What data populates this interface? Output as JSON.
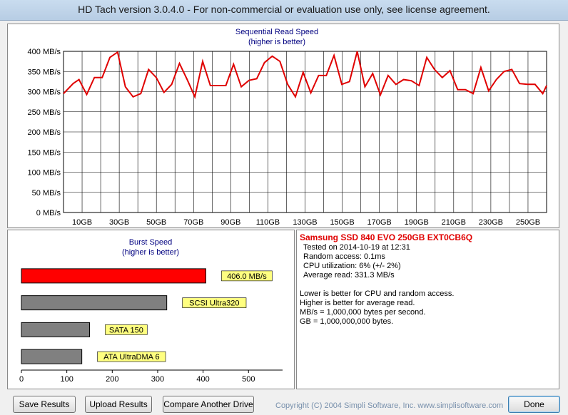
{
  "window": {
    "title": "HD Tach version 3.0.4.0  - For non-commercial or evaluation use only, see license agreement."
  },
  "colors": {
    "seq_line": "#e00000",
    "burst_bar_current": "#ff0000",
    "burst_bar_reference": "#808080",
    "bar_label_bg": "#ffff80",
    "chart_title": "#000080",
    "drive_name": "#e00000",
    "copyright": "#7890ac"
  },
  "chart_data": [
    {
      "type": "line",
      "title": "Sequential Read Speed",
      "subtitle": "(higher is better)",
      "y_ticks": [
        "0 MB/s",
        "50 MB/s",
        "100 MB/s",
        "150 MB/s",
        "200 MB/s",
        "250 MB/s",
        "300 MB/s",
        "350 MB/s",
        "400 MB/s"
      ],
      "x_ticks": [
        "10GB",
        "30GB",
        "50GB",
        "70GB",
        "90GB",
        "110GB",
        "130GB",
        "150GB",
        "170GB",
        "190GB",
        "210GB",
        "230GB",
        "250GB"
      ],
      "ylim": [
        0,
        400
      ],
      "xlim": [
        0,
        250
      ],
      "grid": true,
      "series": [
        {
          "x": [
            0,
            5,
            8,
            12,
            16,
            20,
            24,
            28,
            32,
            36,
            40,
            44,
            48,
            52,
            56,
            60,
            64,
            68,
            72,
            76,
            80,
            84,
            88,
            92,
            96,
            100,
            104,
            108,
            112,
            116,
            120,
            124,
            128,
            132,
            136,
            140,
            144,
            148,
            152,
            156,
            160,
            164,
            168,
            172,
            176,
            180,
            184,
            188,
            192,
            196,
            200,
            204,
            208,
            212,
            216,
            220,
            224,
            228,
            232,
            236,
            240,
            244,
            248,
            250
          ],
          "y": [
            295,
            320,
            330,
            293,
            335,
            335,
            385,
            398,
            312,
            287,
            295,
            355,
            335,
            298,
            318,
            370,
            330,
            287,
            375,
            315,
            315,
            315,
            368,
            312,
            328,
            332,
            372,
            388,
            375,
            318,
            287,
            348,
            297,
            340,
            340,
            390,
            318,
            325,
            400,
            312,
            345,
            292,
            340,
            318,
            330,
            327,
            315,
            385,
            355,
            335,
            352,
            305,
            305,
            295,
            360,
            302,
            330,
            350,
            355,
            320,
            318,
            318,
            295,
            315
          ]
        }
      ]
    },
    {
      "type": "bar",
      "title": "Burst Speed",
      "subtitle": "(higher is better)",
      "orientation": "horizontal",
      "x_ticks": [
        "0",
        "100",
        "200",
        "300",
        "400",
        "500"
      ],
      "xlim": [
        0,
        575
      ],
      "categories": [
        "406.0 MB/s",
        "SCSI Ultra320",
        "SATA 150",
        "ATA UltraDMA 6"
      ],
      "values": [
        406,
        320,
        150,
        133
      ],
      "current_index": 0
    }
  ],
  "info": {
    "drive_name": "Samsung SSD 840 EVO 250GB EXT0CB6Q",
    "tested_on": "Tested on 2014-10-19 at 12:31",
    "random_access": "Random access: 0.1ms",
    "cpu_utilization": "CPU utilization: 6% (+/- 2%)",
    "average_read": "Average read: 331.3 MB/s",
    "notes": [
      "Lower is better for CPU and random access.",
      "Higher is better for average read.",
      "MB/s = 1,000,000 bytes per second.",
      "GB = 1,000,000,000 bytes."
    ]
  },
  "buttons": {
    "save": "Save Results",
    "upload": "Upload Results",
    "compare": "Compare Another Drive",
    "done": "Done"
  },
  "copyright": "Copyright (C) 2004 Simpli Software, Inc. www.simplisoftware.com"
}
